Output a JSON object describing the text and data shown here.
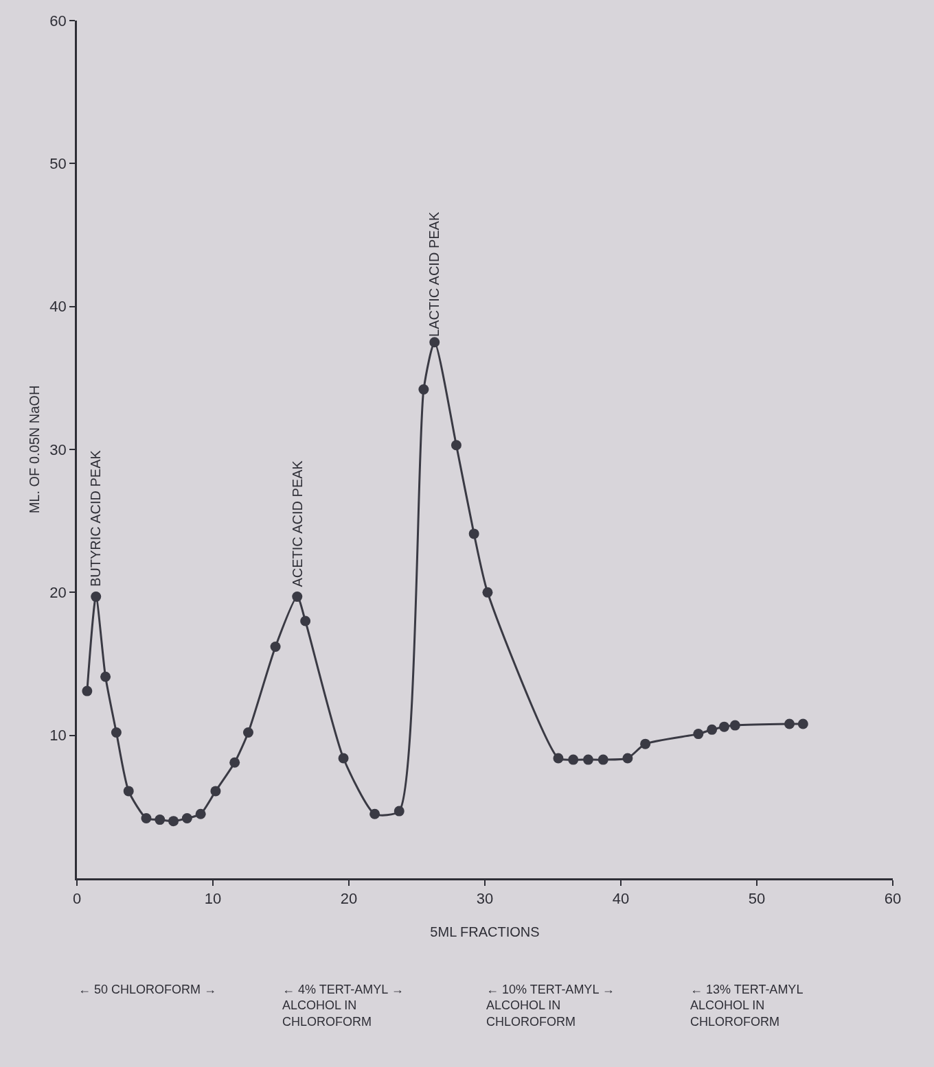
{
  "chart_data": {
    "type": "line",
    "xlabel": "5ML FRACTIONS",
    "ylabel": "ML. OF 0.05N NaOH",
    "x": [
      0.75,
      1.4,
      2.1,
      2.9,
      3.8,
      5.1,
      6.1,
      7.1,
      8.1,
      9.1,
      10.2,
      11.6,
      12.6,
      14.6,
      16.2,
      16.8,
      19.6,
      21.9,
      23.7,
      25.5,
      26.3,
      27.9,
      29.2,
      30.2,
      35.4,
      36.5,
      37.6,
      38.7,
      40.5,
      41.8,
      45.7,
      46.7,
      47.6,
      48.4,
      52.4,
      53.4
    ],
    "series": [
      {
        "color": "#3a3a44",
        "values": [
          13.1,
          19.7,
          14.1,
          10.2,
          6.1,
          4.2,
          4.1,
          4.0,
          4.2,
          4.5,
          6.1,
          8.1,
          10.2,
          16.2,
          19.7,
          18.0,
          8.4,
          4.5,
          4.7,
          34.2,
          37.5,
          30.3,
          24.1,
          20.0,
          8.4,
          8.3,
          8.3,
          8.3,
          8.4,
          9.4,
          10.1,
          10.4,
          10.6,
          10.7,
          10.8,
          10.8
        ]
      }
    ],
    "xlim": [
      0,
      60
    ],
    "xticks": [
      0,
      10,
      20,
      30,
      40,
      50,
      60
    ],
    "ylim": [
      0,
      60
    ],
    "yticks": [
      10,
      20,
      30,
      40,
      50,
      60
    ],
    "marker": "circle",
    "line_style": "solid",
    "grid": false,
    "annotations": [
      {
        "text": "BUTYRIC ACID PEAK",
        "x": 1.4,
        "y": 20
      },
      {
        "text": "ACETIC ACID PEAK",
        "x": 16.2,
        "y": 20
      },
      {
        "text": "LACTIC ACID PEAK",
        "x": 26.3,
        "y": 37.5
      },
      "← 50 CHLOROFORM →",
      "← 4% TERT-AMYL →\nALCOHOL IN\nCHLOROFORM",
      "← 10% TERT-AMYL →\nALCOHOL IN\nCHLOROFORM",
      "← 13% TERT-AMYL\nALCOHOL IN\nCHLOROFORM"
    ]
  }
}
